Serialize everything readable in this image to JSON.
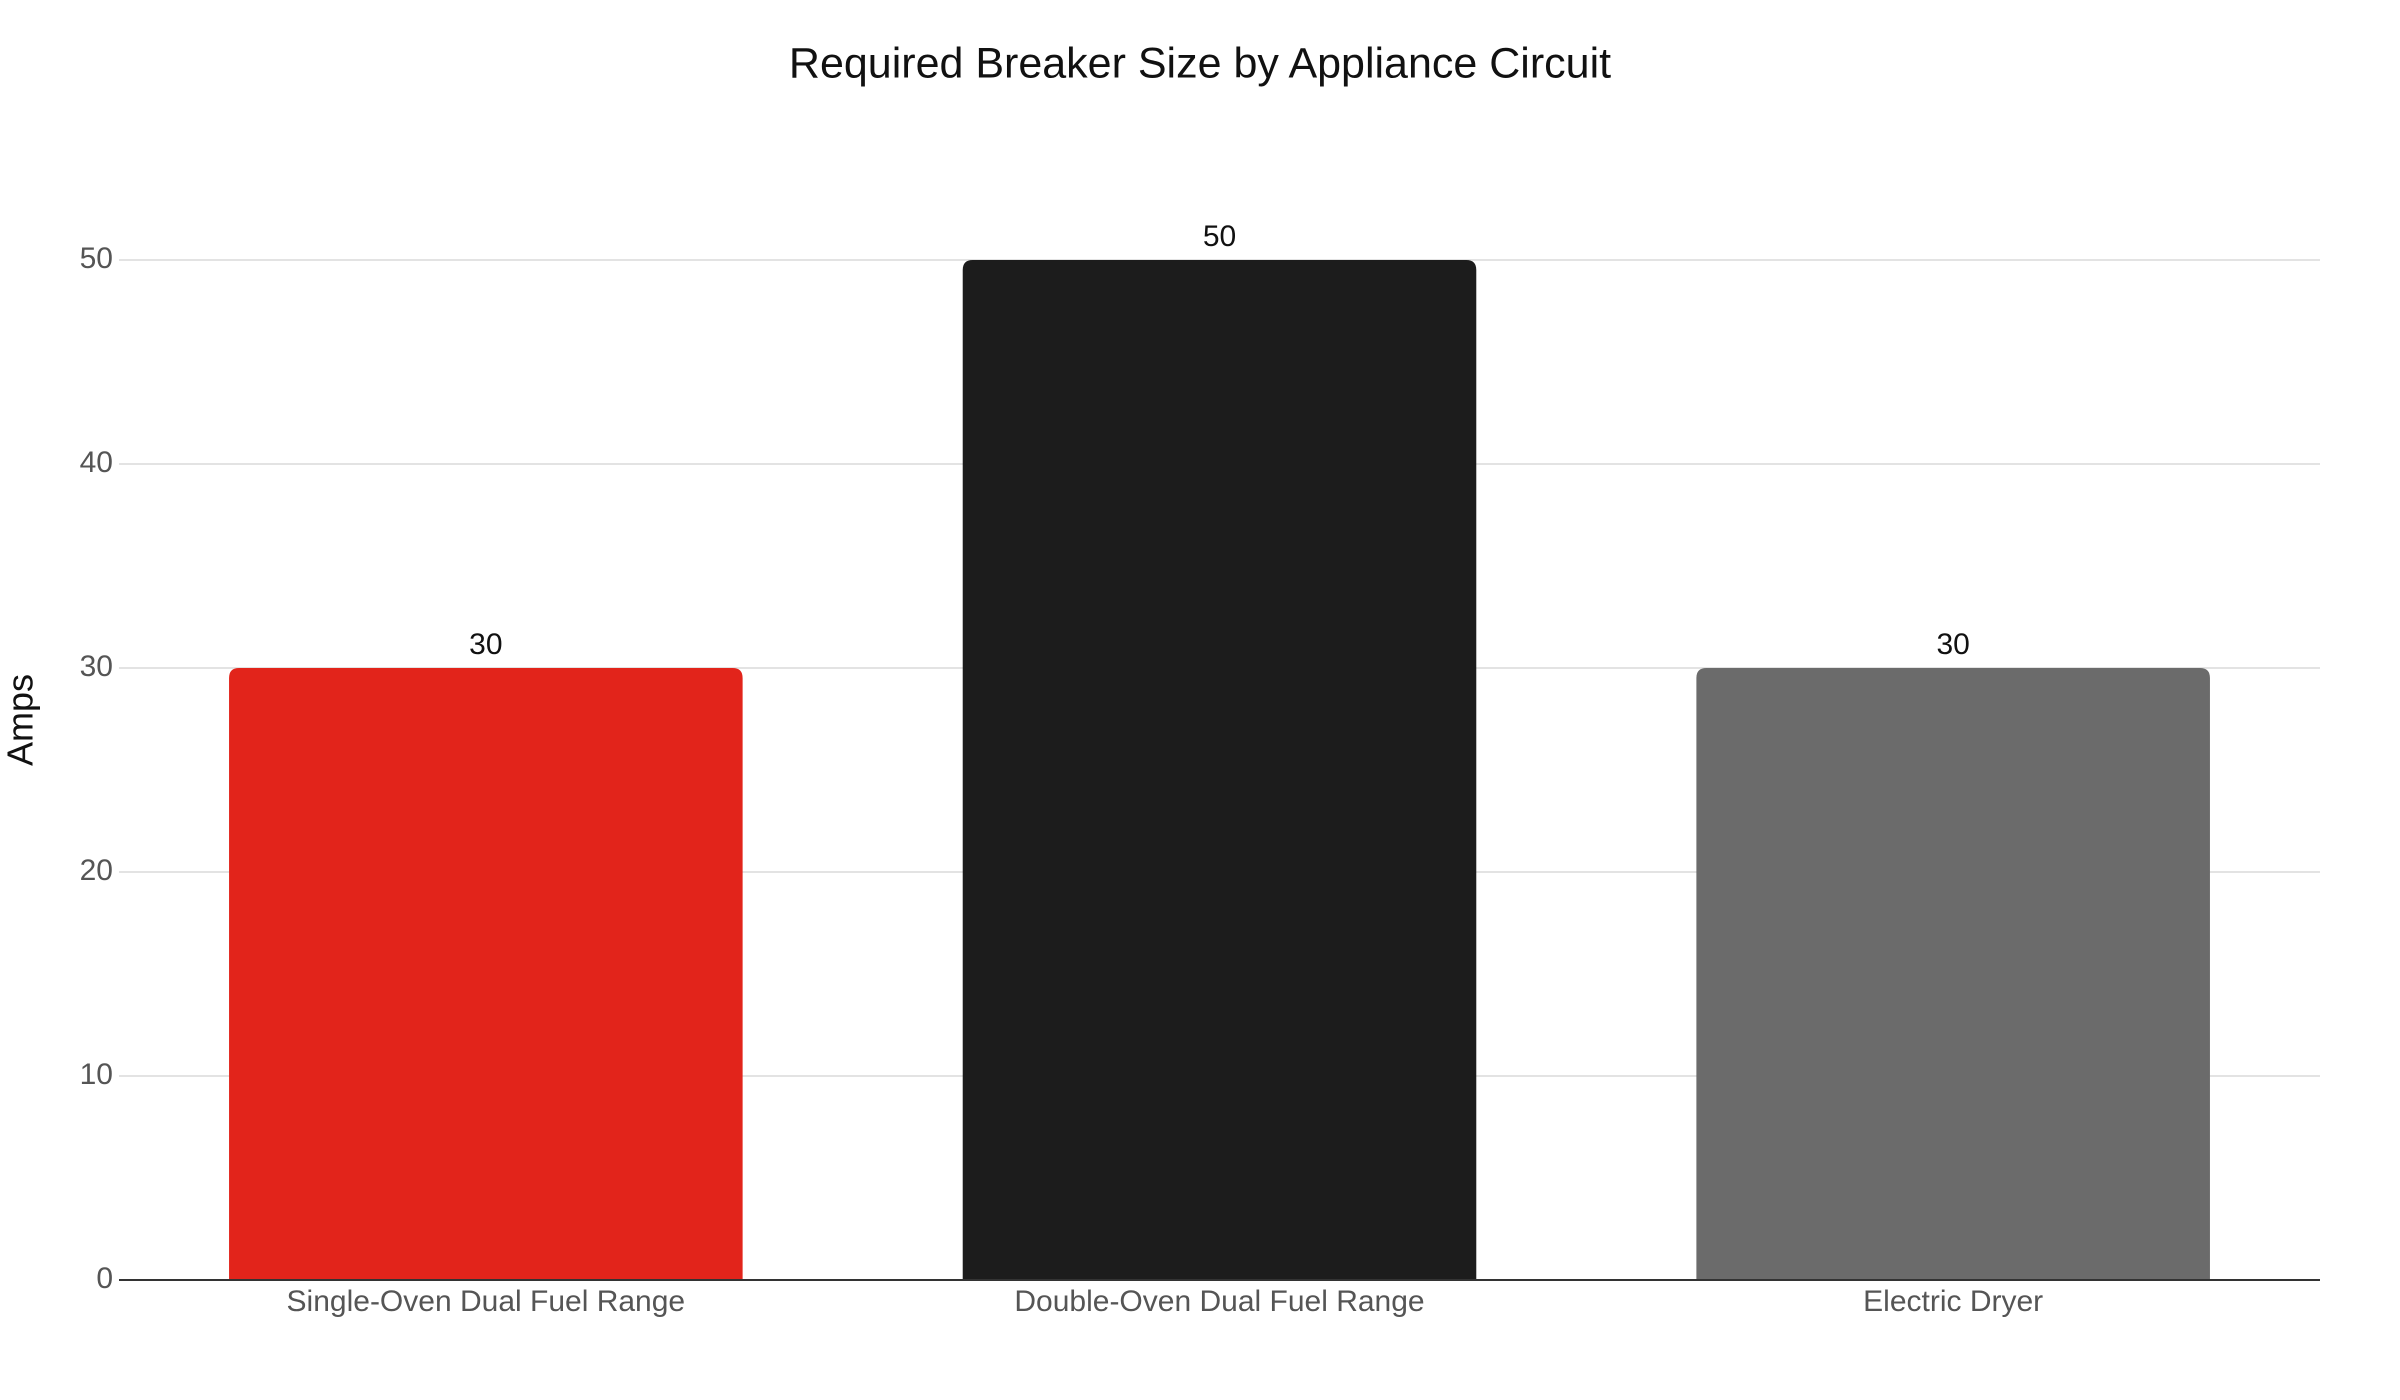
{
  "chart_data": {
    "type": "bar",
    "title": "Required Breaker Size by Appliance Circuit",
    "y_label": "Amps",
    "categories": [
      "Single-Oven Dual Fuel Range",
      "Double-Oven Dual Fuel Range",
      "Electric Dryer"
    ],
    "values": [
      30,
      50,
      30
    ],
    "colors": [
      "#e2241b",
      "#1c1c1c",
      "#6b6b6b"
    ],
    "ylim": [
      0,
      50
    ],
    "yticks": [
      0,
      10,
      20,
      30,
      40,
      50
    ],
    "grid": true
  }
}
